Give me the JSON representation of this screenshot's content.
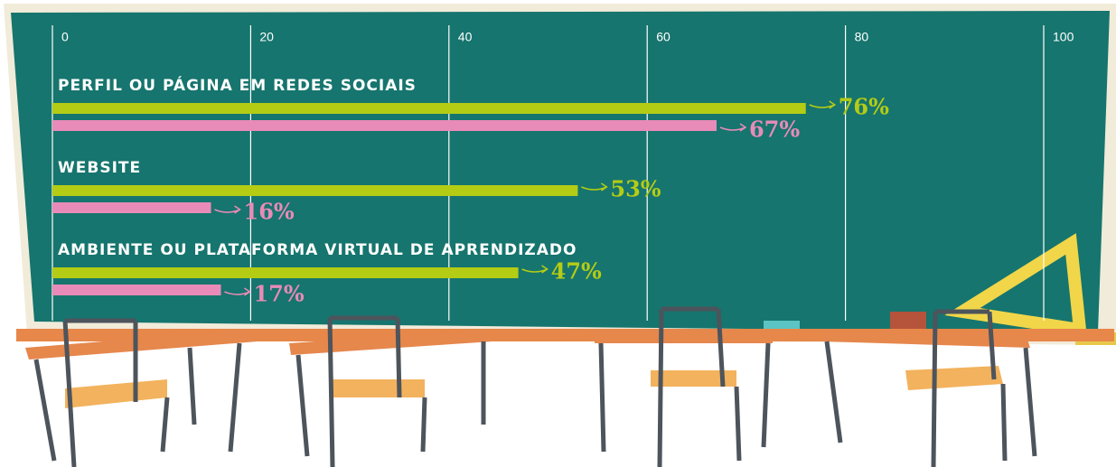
{
  "chart_data": {
    "type": "bar",
    "orientation": "horizontal",
    "categories": [
      "PERFIL OU PÁGINA EM REDES SOCIAIS",
      "WEBSITE",
      "AMBIENTE OU PLATAFORMA VIRTUAL DE APRENDIZADO"
    ],
    "series": [
      {
        "color": "#b5cc14",
        "values": [
          76,
          53,
          47
        ],
        "value_labels": [
          "76%",
          "53%",
          "47%"
        ]
      },
      {
        "color": "#e98bb8",
        "values": [
          67,
          16,
          17
        ],
        "value_labels": [
          "67%",
          "16%",
          "17%"
        ]
      }
    ],
    "xlim": [
      0,
      100
    ],
    "xticks": [
      0,
      20,
      40,
      60,
      80,
      100
    ],
    "grid": true
  }
}
